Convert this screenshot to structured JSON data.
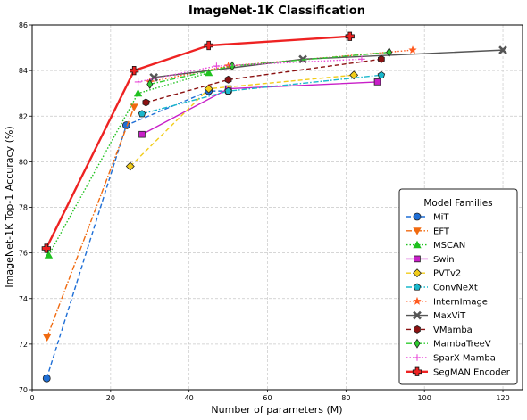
{
  "chart_data": {
    "type": "line",
    "title": "ImageNet-1K Classification",
    "xlabel": "Number of parameters (M)",
    "ylabel": "ImageNet-1K Top-1 Accuracy (%)",
    "xlim": [
      0,
      125
    ],
    "ylim": [
      70,
      86
    ],
    "xticks": [
      0,
      20,
      40,
      60,
      80,
      100,
      120
    ],
    "yticks": [
      70,
      72,
      74,
      76,
      78,
      80,
      82,
      84,
      86
    ],
    "grid": true,
    "legend": {
      "title": "Model Families",
      "placement": "lower-right"
    },
    "series": [
      {
        "name": "MiT",
        "color": "#1f6fd6",
        "dash": "dashed",
        "marker": "circle",
        "x": [
          3.7,
          24,
          45,
          50
        ],
        "y": [
          70.5,
          81.6,
          83.1,
          83.1
        ]
      },
      {
        "name": "EFT",
        "color": "#f06a10",
        "dash": "dashdot",
        "marker": "triangle-down",
        "x": [
          3.8,
          26
        ],
        "y": [
          72.3,
          82.4
        ]
      },
      {
        "name": "MSCAN",
        "color": "#1fc11f",
        "dash": "dotted",
        "marker": "triangle-up",
        "x": [
          4.2,
          27,
          45
        ],
        "y": [
          75.9,
          83.0,
          83.9
        ]
      },
      {
        "name": "Swin",
        "color": "#c81fc8",
        "dash": "solid",
        "marker": "square",
        "x": [
          28,
          50,
          88
        ],
        "y": [
          81.2,
          83.2,
          83.5
        ]
      },
      {
        "name": "PVTv2",
        "color": "#f2cc1a",
        "dash": "dashed",
        "marker": "diamond",
        "x": [
          25,
          45,
          82
        ],
        "y": [
          79.8,
          83.2,
          83.8
        ]
      },
      {
        "name": "ConvNeXt",
        "color": "#1ab8cc",
        "dash": "dashdot",
        "marker": "pentagon",
        "x": [
          28,
          50,
          89
        ],
        "y": [
          82.1,
          83.1,
          83.8
        ]
      },
      {
        "name": "InternImage",
        "color": "#ff5a1f",
        "dash": "dotted",
        "marker": "star",
        "x": [
          30,
          50,
          97
        ],
        "y": [
          83.5,
          84.2,
          84.9
        ]
      },
      {
        "name": "MaxViT",
        "color": "#555555",
        "dash": "solid",
        "marker": "x",
        "x": [
          31,
          69,
          120
        ],
        "y": [
          83.7,
          84.5,
          84.9
        ]
      },
      {
        "name": "VMamba",
        "color": "#8b1212",
        "dash": "dashed",
        "marker": "hexagon",
        "x": [
          29,
          50,
          89
        ],
        "y": [
          82.6,
          83.6,
          84.5
        ]
      },
      {
        "name": "MambaTreeV",
        "color": "#2fcc2f",
        "dash": "dashdot",
        "marker": "thin-diamond",
        "x": [
          30,
          51,
          91
        ],
        "y": [
          83.4,
          84.2,
          84.8
        ]
      },
      {
        "name": "SparX-Mamba",
        "color": "#e84ad8",
        "dash": "dotted",
        "marker": "plus",
        "x": [
          27,
          47,
          84
        ],
        "y": [
          83.5,
          84.2,
          84.5
        ]
      },
      {
        "name": "SegMAN Encoder",
        "color": "#ee2222",
        "dash": "solid",
        "marker": "plus-filled",
        "x": [
          3.6,
          26,
          45,
          81
        ],
        "y": [
          76.2,
          84.0,
          85.1,
          85.5
        ]
      }
    ]
  }
}
